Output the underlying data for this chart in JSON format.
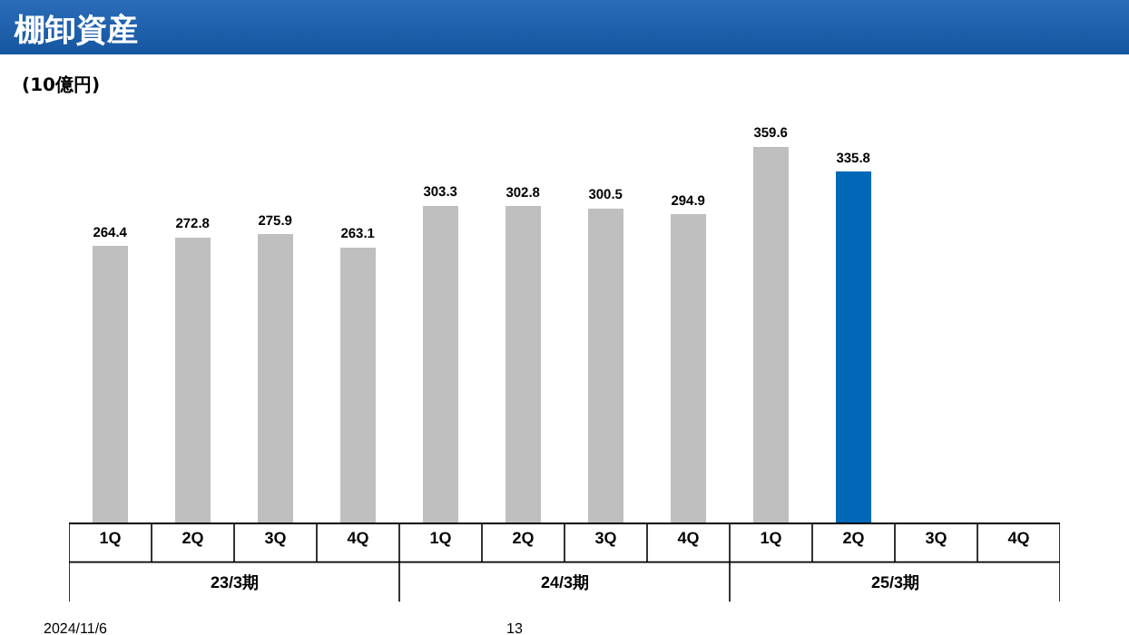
{
  "chart_data": {
    "type": "bar",
    "title": "棚卸資産",
    "subtitle": "(10億円)",
    "categories": [
      "1Q",
      "2Q",
      "3Q",
      "4Q",
      "1Q",
      "2Q",
      "3Q",
      "4Q",
      "1Q",
      "2Q",
      "3Q",
      "4Q"
    ],
    "values": [
      264.4,
      272.8,
      275.9,
      263.1,
      303.3,
      302.8,
      300.5,
      294.9,
      359.6,
      335.8,
      null,
      null
    ],
    "colors": [
      "#bfbfbf",
      "#bfbfbf",
      "#bfbfbf",
      "#bfbfbf",
      "#bfbfbf",
      "#bfbfbf",
      "#bfbfbf",
      "#bfbfbf",
      "#bfbfbf",
      "#0068b7",
      "#bfbfbf",
      "#bfbfbf"
    ],
    "data_labels": true,
    "tick_labels": "x",
    "annotations": [
      "23/3期",
      "24/3期",
      "25/3期",
      "2024/11/6",
      "13"
    ]
  }
}
